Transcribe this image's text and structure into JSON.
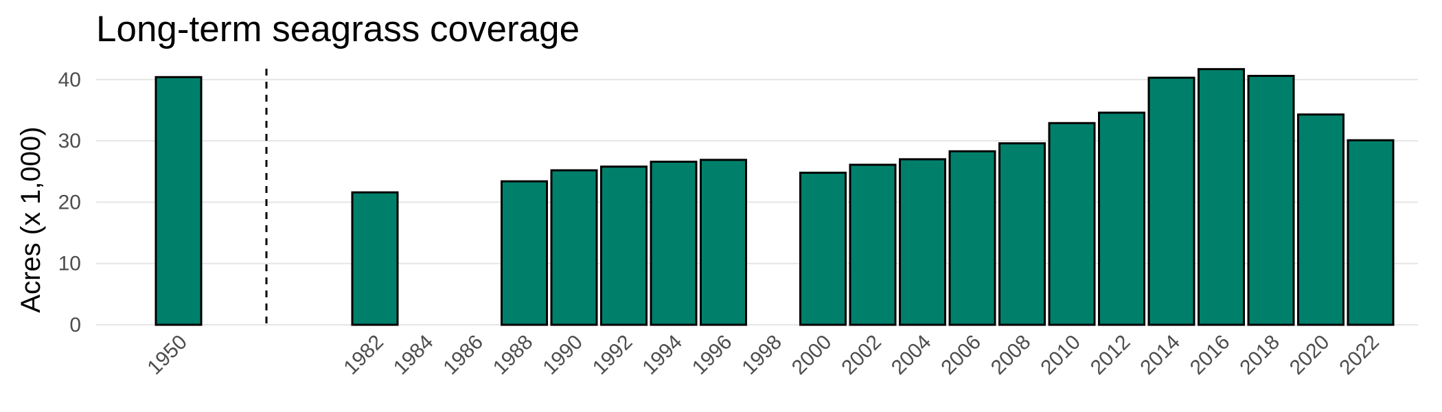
{
  "chart_data": {
    "type": "bar",
    "title": "Long-term seagrass coverage",
    "xlabel": "",
    "ylabel": "Acres (x 1,000)",
    "ylim": [
      0,
      42
    ],
    "y_ticks": [
      0,
      10,
      20,
      30,
      40
    ],
    "grid": "horizontal",
    "bar_fill": "#00806B",
    "bar_stroke": "#000000",
    "categories": [
      "1950",
      "1982",
      "1984",
      "1986",
      "1988",
      "1990",
      "1992",
      "1994",
      "1996",
      "1998",
      "2000",
      "2002",
      "2004",
      "2006",
      "2008",
      "2010",
      "2012",
      "2014",
      "2016",
      "2018",
      "2020",
      "2022"
    ],
    "values": [
      40.4,
      21.6,
      null,
      null,
      23.4,
      25.2,
      25.8,
      26.6,
      26.9,
      null,
      24.8,
      26.1,
      27.0,
      28.3,
      29.6,
      32.9,
      34.6,
      40.3,
      41.7,
      40.6,
      34.3,
      30.1
    ],
    "annotations": [
      {
        "type": "vertical-dashed-line",
        "between": [
          "1950",
          "1982"
        ]
      }
    ]
  }
}
